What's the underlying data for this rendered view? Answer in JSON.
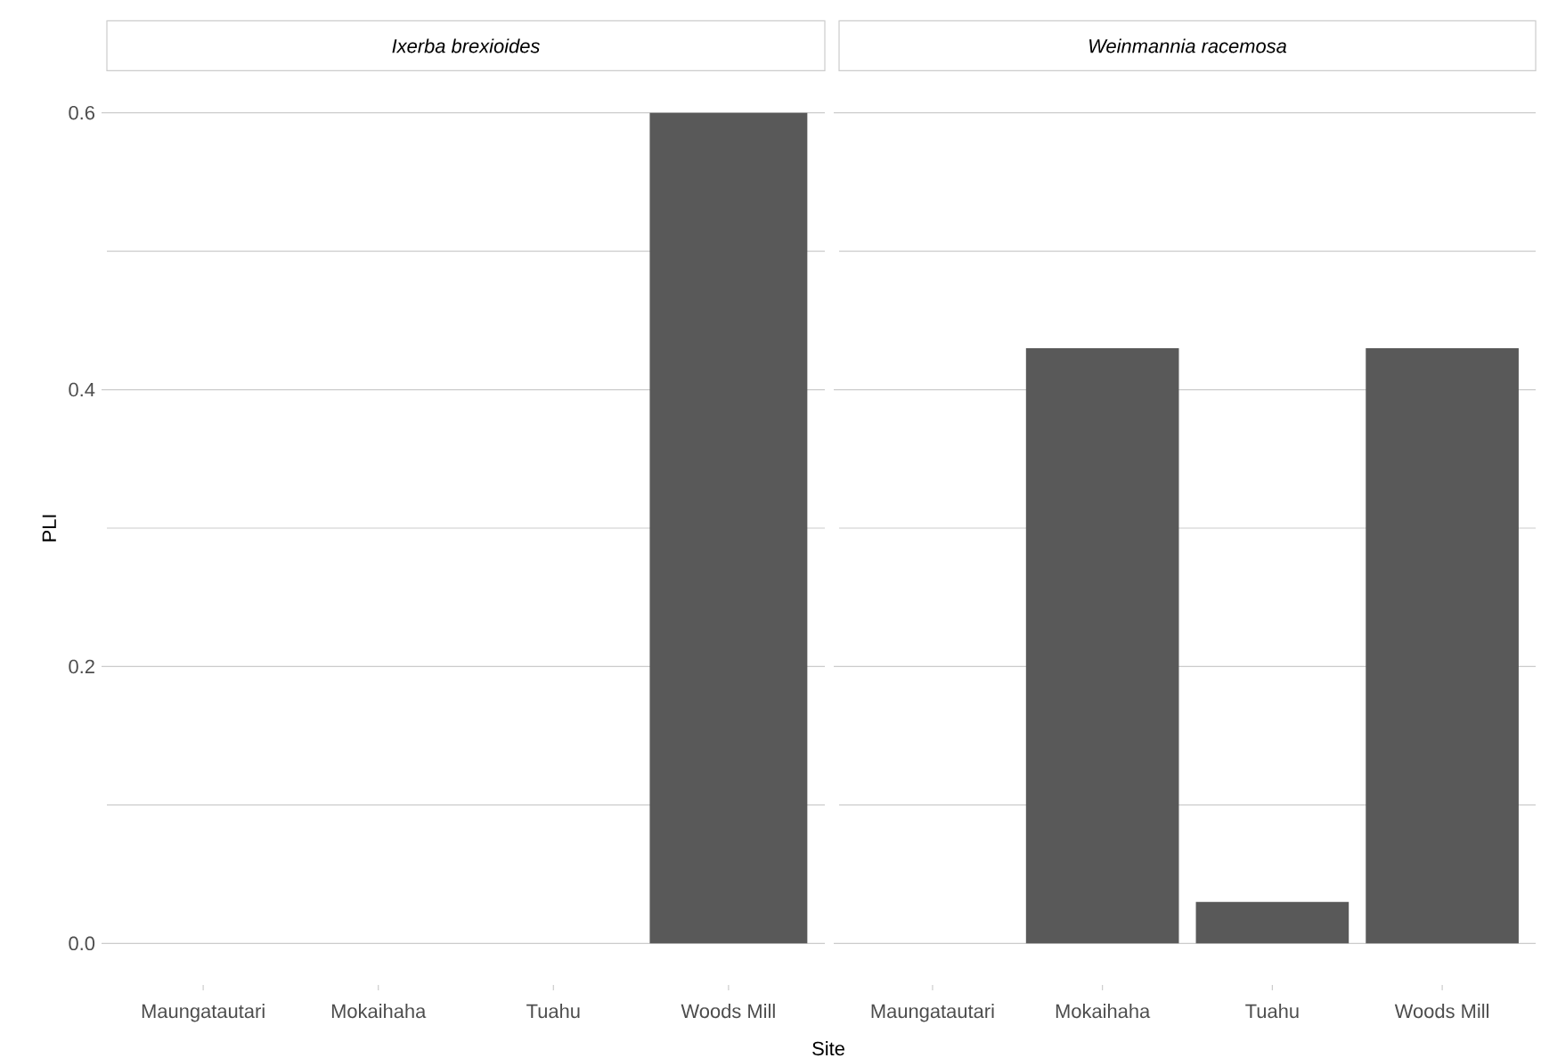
{
  "chart_data": [
    {
      "type": "bar",
      "title": "Ixerba brexioides",
      "xlabel": "Site",
      "ylabel": "PLI",
      "categories": [
        "Maungatautari",
        "Mokaihaha",
        "Tuahu",
        "Woods Mill"
      ],
      "values": [
        0,
        0,
        0,
        0.6
      ],
      "color": "#595959",
      "ylim": [
        0,
        0.6
      ],
      "yticks": [
        {
          "value": 0,
          "label": "0.0"
        },
        {
          "value": 0.1,
          "label": null
        },
        0.2,
        {
          "value": 0.3,
          "label": null
        },
        0.4,
        {
          "value": 0.5,
          "label": null
        },
        0.6
      ],
      "grid": "y"
    },
    {
      "type": "bar",
      "title": "Weinmannia racemosa",
      "categories": [
        "Maungatautari",
        "Mokaihaha",
        "Tuahu",
        "Woods Mill"
      ],
      "values": [
        0,
        0.43,
        0.03,
        0.43
      ],
      "color": "#595959",
      "ylim": [
        0,
        0.6
      ],
      "yticks": [
        0,
        {
          "value": 0.1,
          "label": null
        },
        0.2,
        {
          "value": 0.3,
          "label": null
        },
        0.4,
        {
          "value": 0.5,
          "label": null
        },
        0.6
      ],
      "grid": "y",
      "tick_labels": "x"
    }
  ]
}
